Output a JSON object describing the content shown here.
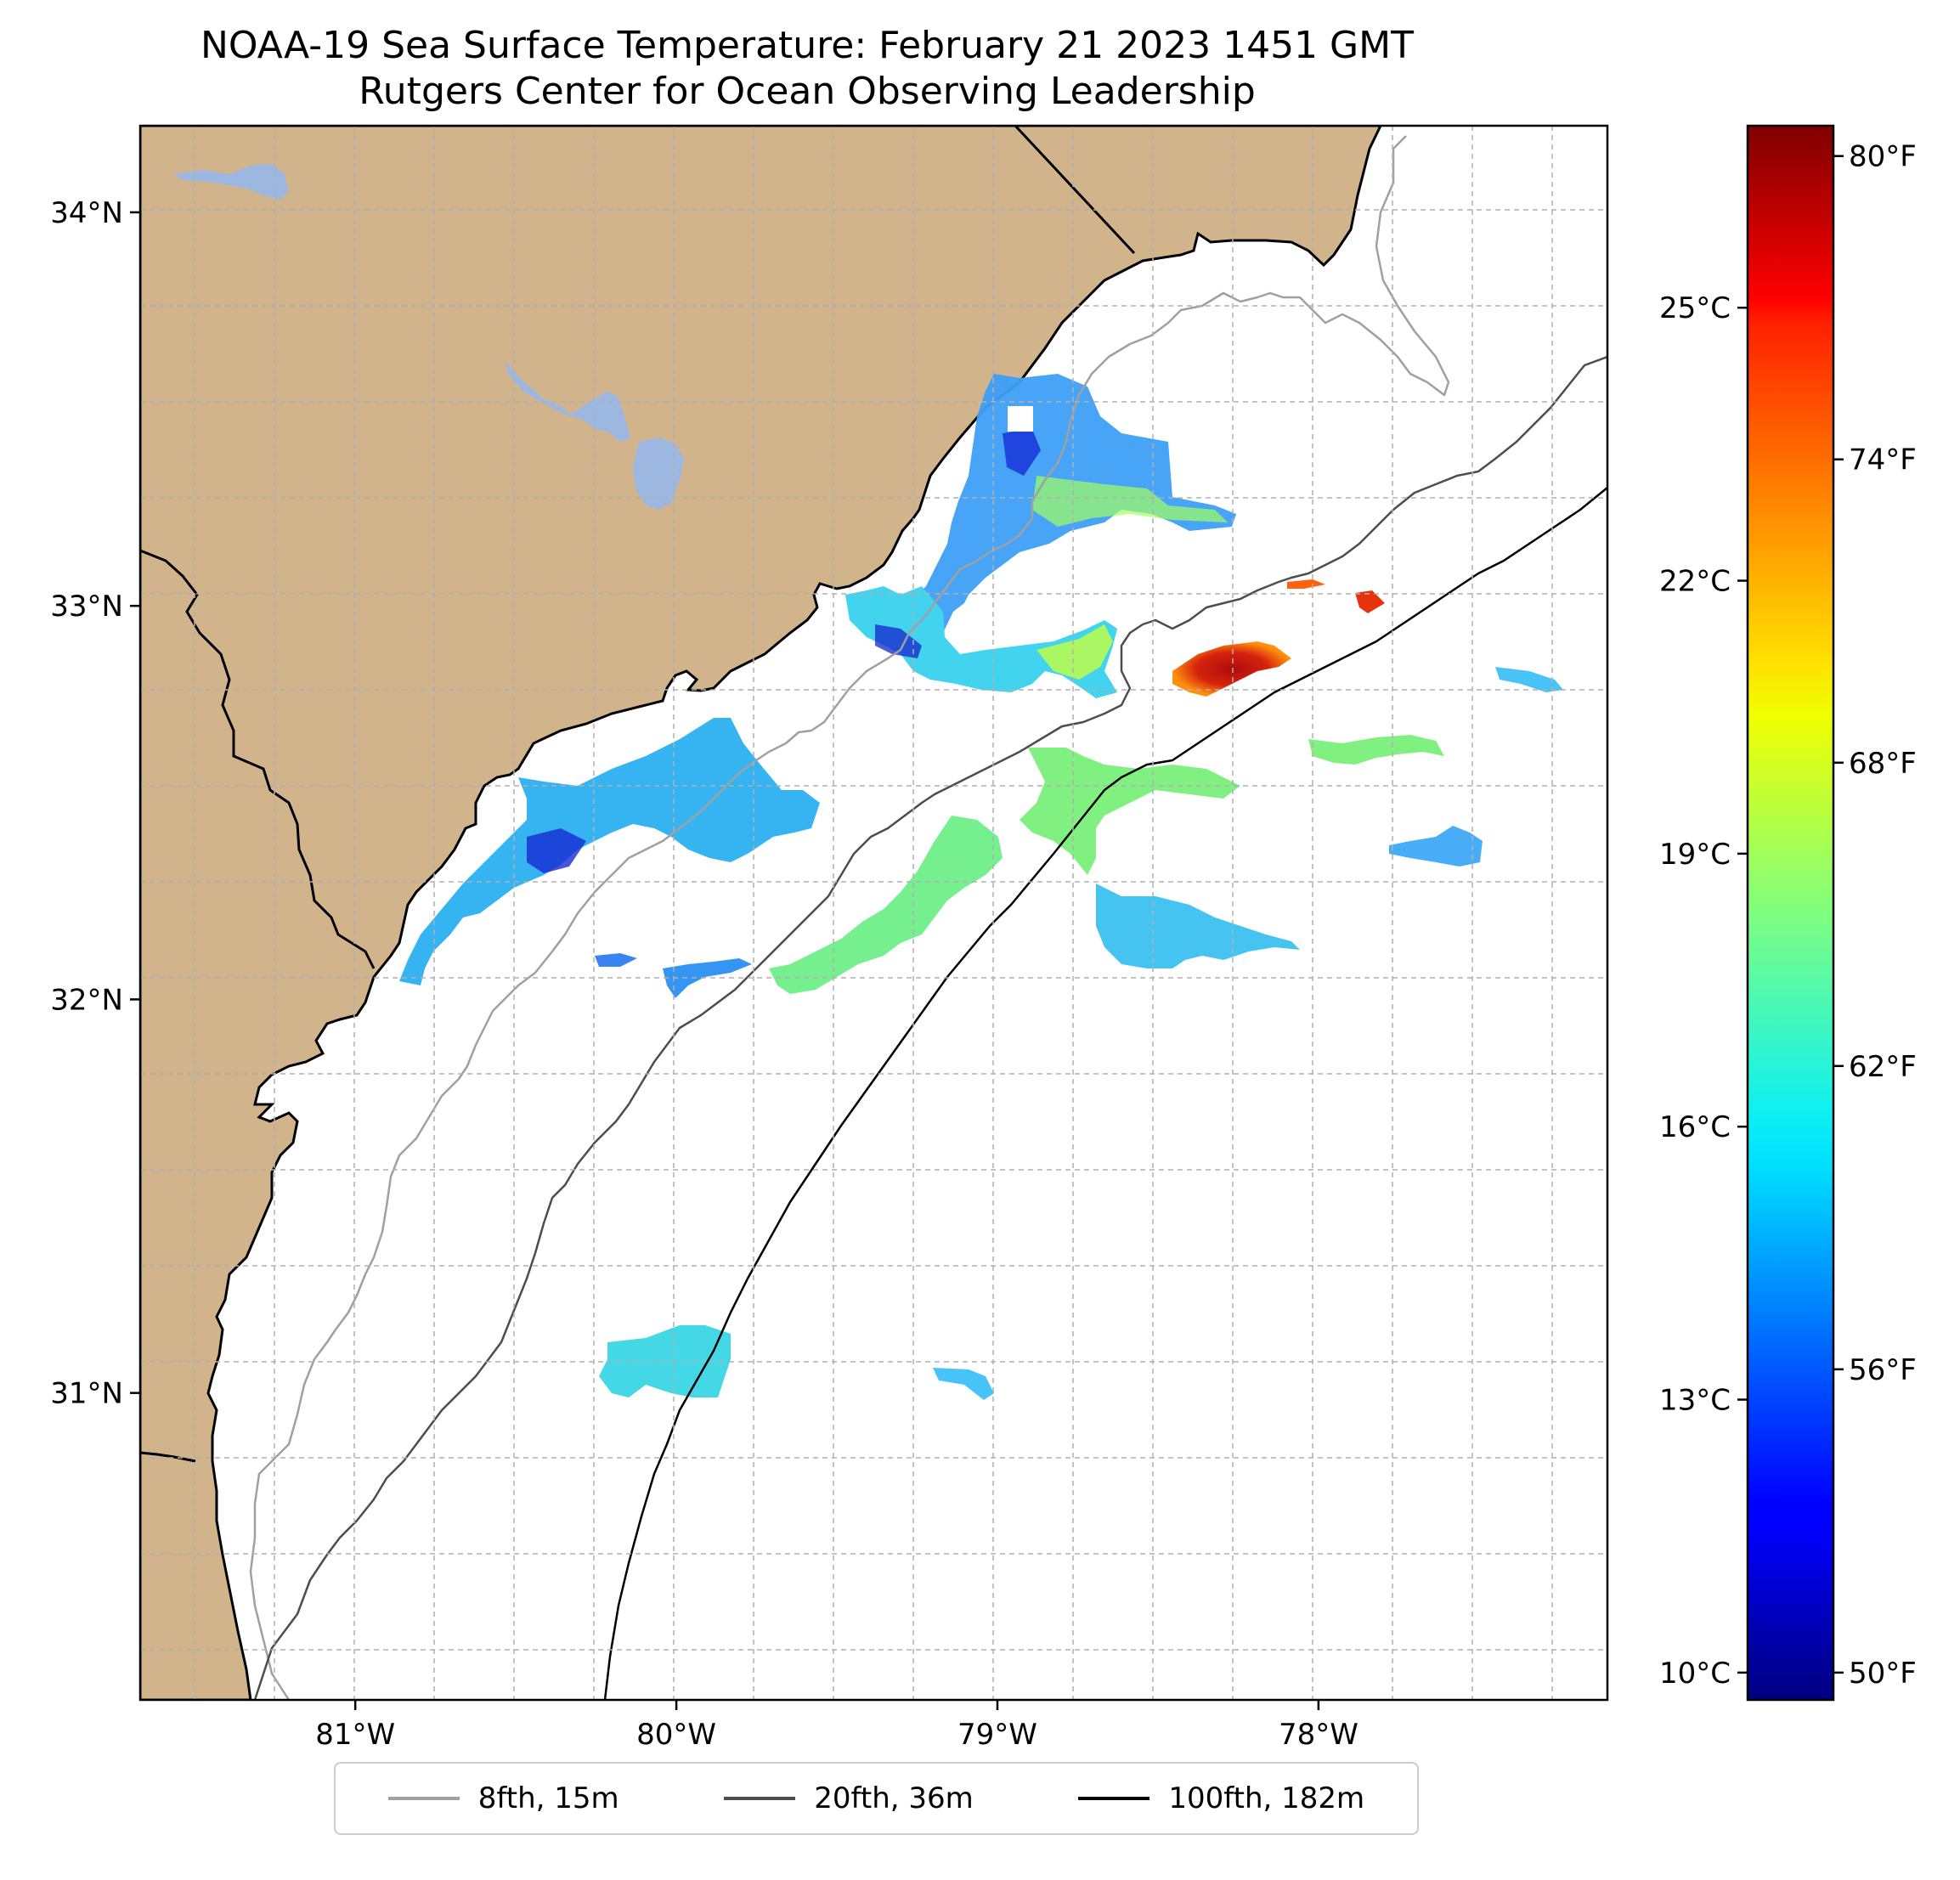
{
  "title": {
    "line1": "NOAA-19 Sea Surface Temperature: February 21 2023 1451 GMT",
    "line2": "Rutgers Center for Ocean Observing Leadership"
  },
  "map": {
    "land_color": "#d2b48c",
    "lake_color": "#9db8e0",
    "ocean_color": "#ffffff",
    "lon_range": [
      -81.67,
      -77.1
    ],
    "lat_range": [
      30.22,
      34.22
    ],
    "lat_ticks": [
      {
        "value": 34,
        "label": "34°N"
      },
      {
        "value": 33,
        "label": "33°N"
      },
      {
        "value": 32,
        "label": "32°N"
      },
      {
        "value": 31,
        "label": "31°N"
      }
    ],
    "lon_ticks": [
      {
        "value": -81,
        "label": "81°W"
      },
      {
        "value": -80,
        "label": "80°W"
      },
      {
        "value": -79,
        "label": "79°W"
      },
      {
        "value": -78,
        "label": "78°W"
      }
    ],
    "grid": true
  },
  "colorbar": {
    "colormap": "jet",
    "range_celsius": [
      9.7,
      27.0
    ],
    "celsius_ticks": [
      {
        "value": 10,
        "label": "10°C"
      },
      {
        "value": 13,
        "label": "13°C"
      },
      {
        "value": 16,
        "label": "16°C"
      },
      {
        "value": 19,
        "label": "19°C"
      },
      {
        "value": 22,
        "label": "22°C"
      },
      {
        "value": 25,
        "label": "25°C"
      }
    ],
    "fahrenheit_ticks": [
      {
        "value": 50,
        "label": "50°F"
      },
      {
        "value": 56,
        "label": "56°F"
      },
      {
        "value": 62,
        "label": "62°F"
      },
      {
        "value": 68,
        "label": "68°F"
      },
      {
        "value": 74,
        "label": "74°F"
      },
      {
        "value": 80,
        "label": "80°F"
      }
    ]
  },
  "legend": [
    {
      "label": "8fth, 15m",
      "color": "#a0a0a0"
    },
    {
      "label": "20fth, 36m",
      "color": "#4d4d4d"
    },
    {
      "label": "100fth, 182m",
      "color": "#000000"
    }
  ]
}
